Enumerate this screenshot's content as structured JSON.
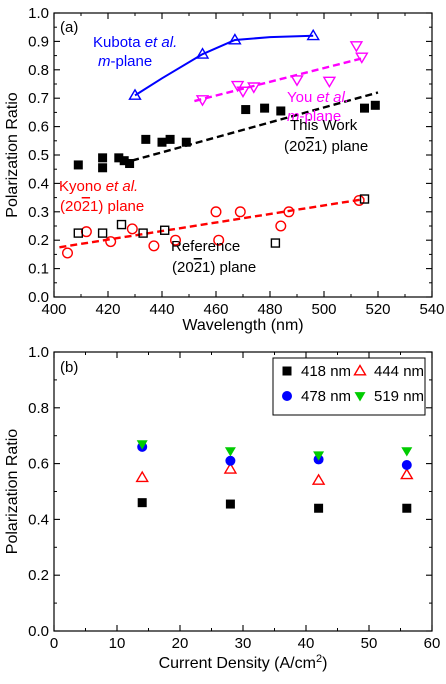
{
  "chart_data": [
    {
      "type": "scatter",
      "panel_label": "(a)",
      "xlabel": "Wavelength (nm)",
      "ylabel": "Polarization Ratio",
      "xlim": [
        400,
        540
      ],
      "ylim": [
        0.0,
        1.0
      ],
      "xticks": [
        "400",
        "420",
        "440",
        "460",
        "480",
        "500",
        "520",
        "540"
      ],
      "yticks": [
        "0.0",
        "0.1",
        "0.2",
        "0.3",
        "0.4",
        "0.5",
        "0.6",
        "0.7",
        "0.8",
        "0.9",
        "1.0"
      ],
      "annotations": [
        {
          "id": "kubota",
          "lines": [
            "Kubota et al.",
            "m-plane"
          ],
          "color": "#0000ff"
        },
        {
          "id": "you",
          "lines": [
            "You et al.",
            "m-plane"
          ],
          "color": "#ff00ff"
        },
        {
          "id": "thiswork",
          "lines": [
            "This Work",
            "(2021) plane"
          ],
          "color": "#000000"
        },
        {
          "id": "kyono",
          "lines": [
            "Kyono et al.",
            "(2021) plane"
          ],
          "color": "#ff0000"
        },
        {
          "id": "reference",
          "lines": [
            "Reference",
            "(2021) plane"
          ],
          "color": "#000000"
        }
      ],
      "series": [
        {
          "id": "kubota",
          "marker": "triangle-up-open",
          "color": "#0000ff",
          "points": [
            [
              430,
              0.71
            ],
            [
              455,
              0.855
            ],
            [
              467,
              0.905
            ],
            [
              496,
              0.92
            ]
          ],
          "trend": {
            "style": "solid",
            "curve": [
              [
                430,
                0.71
              ],
              [
                440,
                0.77
              ],
              [
                455,
                0.855
              ],
              [
                467,
                0.905
              ],
              [
                480,
                0.915
              ],
              [
                496,
                0.92
              ]
            ]
          }
        },
        {
          "id": "you",
          "marker": "triangle-down-open",
          "color": "#ff00ff",
          "points": [
            [
              455,
              0.695
            ],
            [
              468,
              0.745
            ],
            [
              470,
              0.725
            ],
            [
              474,
              0.74
            ],
            [
              490,
              0.765
            ],
            [
              502,
              0.76
            ],
            [
              512,
              0.885
            ],
            [
              514,
              0.845
            ]
          ],
          "trend": {
            "style": "dashed",
            "line": [
              [
                452,
                0.69
              ],
              [
                514,
                0.84
              ]
            ]
          }
        },
        {
          "id": "thiswork",
          "marker": "square-filled",
          "color": "#000000",
          "points": [
            [
              409,
              0.465
            ],
            [
              418,
              0.455
            ],
            [
              418,
              0.49
            ],
            [
              424,
              0.49
            ],
            [
              426,
              0.48
            ],
            [
              428,
              0.47
            ],
            [
              434,
              0.555
            ],
            [
              440,
              0.545
            ],
            [
              443,
              0.555
            ],
            [
              449,
              0.545
            ],
            [
              471,
              0.66
            ],
            [
              478,
              0.665
            ],
            [
              484,
              0.655
            ],
            [
              515,
              0.665
            ],
            [
              519,
              0.675
            ]
          ],
          "trend": {
            "style": "dashed",
            "line": [
              [
                425,
                0.47
              ],
              [
                520,
                0.72
              ]
            ]
          }
        },
        {
          "id": "kyono",
          "marker": "circle-open",
          "color": "#ff0000",
          "points": [
            [
              405,
              0.155
            ],
            [
              412,
              0.23
            ],
            [
              421,
              0.195
            ],
            [
              429,
              0.24
            ],
            [
              437,
              0.18
            ],
            [
              445,
              0.2
            ],
            [
              460,
              0.3
            ],
            [
              461,
              0.2
            ],
            [
              469,
              0.3
            ],
            [
              484,
              0.25
            ],
            [
              487,
              0.3
            ],
            [
              513,
              0.34
            ]
          ],
          "trend": {
            "style": "dashed",
            "line": [
              [
                402,
                0.175
              ],
              [
                515,
                0.345
              ]
            ]
          }
        },
        {
          "id": "reference",
          "marker": "square-open",
          "color": "#000000",
          "points": [
            [
              409,
              0.225
            ],
            [
              418,
              0.225
            ],
            [
              425,
              0.255
            ],
            [
              433,
              0.225
            ],
            [
              441,
              0.235
            ],
            [
              482,
              0.19
            ],
            [
              515,
              0.345
            ]
          ]
        }
      ]
    },
    {
      "type": "scatter",
      "panel_label": "(b)",
      "xlabel": "Current Density (A/cm2)",
      "ylabel": "Polarization Ratio",
      "xlim": [
        0,
        60
      ],
      "ylim": [
        0.0,
        1.0
      ],
      "xticks": [
        "0",
        "10",
        "20",
        "30",
        "40",
        "50",
        "60"
      ],
      "yticks": [
        "0.0",
        "0.2",
        "0.4",
        "0.6",
        "0.8",
        "1.0"
      ],
      "legend_position": "top-right",
      "x": [
        14,
        28,
        42,
        56
      ],
      "series": [
        {
          "name": "418 nm",
          "marker": "square-filled",
          "color": "#000000",
          "values": [
            0.46,
            0.455,
            0.44,
            0.44
          ]
        },
        {
          "name": "444 nm",
          "marker": "triangle-up-open",
          "color": "#ff0000",
          "values": [
            0.55,
            0.58,
            0.54,
            0.56
          ]
        },
        {
          "name": "478 nm",
          "marker": "circle-filled",
          "color": "#0000ff",
          "values": [
            0.66,
            0.61,
            0.615,
            0.595
          ]
        },
        {
          "name": "519 nm",
          "marker": "triangle-down-filled",
          "color": "#00cc00",
          "values": [
            0.67,
            0.645,
            0.63,
            0.645
          ]
        }
      ]
    }
  ]
}
